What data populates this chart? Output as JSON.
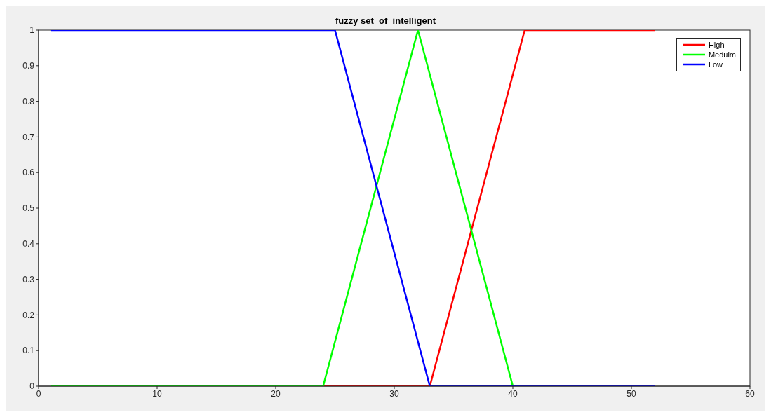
{
  "chart_data": {
    "type": "line",
    "title": "fuzzy set  of  intelligent",
    "xlim": [
      0,
      60
    ],
    "xticks": [
      0,
      10,
      20,
      30,
      40,
      50,
      60
    ],
    "ylim": [
      0,
      1
    ],
    "yticks": [
      0,
      0.1,
      0.2,
      0.3,
      0.4,
      0.5,
      0.6,
      0.7,
      0.8,
      0.9,
      1
    ],
    "grid": false,
    "legend": "top right",
    "marker": "none",
    "line_style": "solid",
    "series": [
      {
        "name": "High",
        "color": "#ff0000",
        "x": [
          24,
          33,
          41,
          52
        ],
        "values": [
          0,
          0,
          1,
          1
        ]
      },
      {
        "name": "Meduim",
        "color": "#00ff00",
        "x": [
          1,
          24,
          32,
          40
        ],
        "values": [
          0,
          0,
          1,
          0
        ]
      },
      {
        "name": "Low",
        "color": "#0000ff",
        "x": [
          1,
          25,
          33,
          52
        ],
        "values": [
          1,
          1,
          0,
          0
        ]
      }
    ]
  }
}
